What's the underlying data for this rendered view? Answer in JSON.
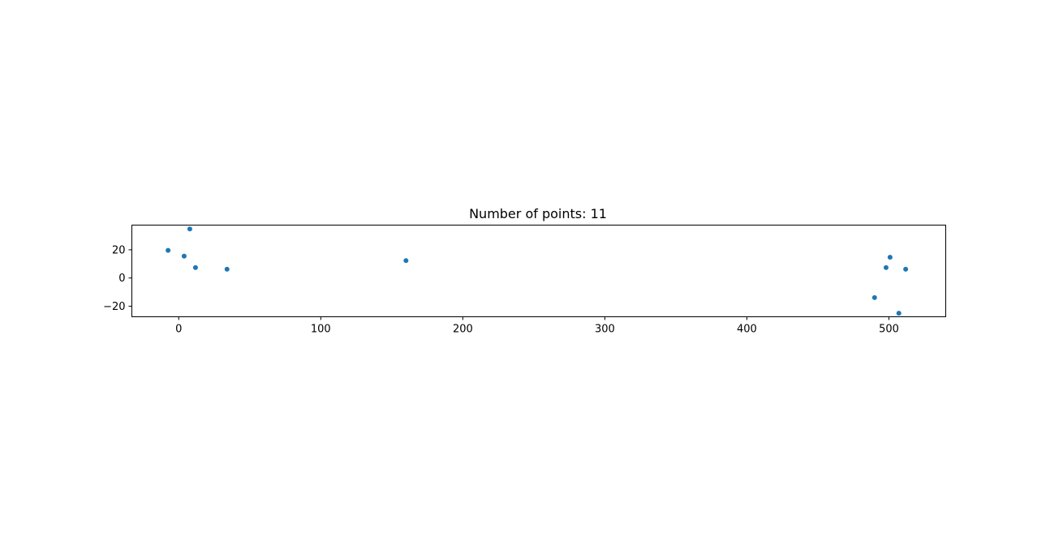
{
  "chart_data": {
    "type": "scatter",
    "title": "Number of points: 11",
    "xlabel": "",
    "ylabel": "",
    "xlim": [
      -33,
      540
    ],
    "ylim": [
      -27.5,
      37.5
    ],
    "x_ticks": [
      0,
      100,
      200,
      300,
      400,
      500
    ],
    "y_ticks": [
      -20,
      0,
      20
    ],
    "x_tick_labels": [
      "0",
      "100",
      "200",
      "300",
      "400",
      "500"
    ],
    "y_tick_labels": [
      "−20",
      "0",
      "20"
    ],
    "grid": false,
    "legend": "none",
    "series": [
      {
        "color": "#1f77b4",
        "points": [
          {
            "x": -7.5,
            "y": 19.6
          },
          {
            "x": 3.8,
            "y": 15.5
          },
          {
            "x": 7.8,
            "y": 34.8
          },
          {
            "x": 11.8,
            "y": 7.4
          },
          {
            "x": 34.0,
            "y": 6.2
          },
          {
            "x": 160.0,
            "y": 12.3
          },
          {
            "x": 489.9,
            "y": -13.9
          },
          {
            "x": 498.0,
            "y": 7.4
          },
          {
            "x": 500.8,
            "y": 14.7
          },
          {
            "x": 507.0,
            "y": -25.0
          },
          {
            "x": 511.8,
            "y": 6.2
          }
        ]
      }
    ]
  }
}
